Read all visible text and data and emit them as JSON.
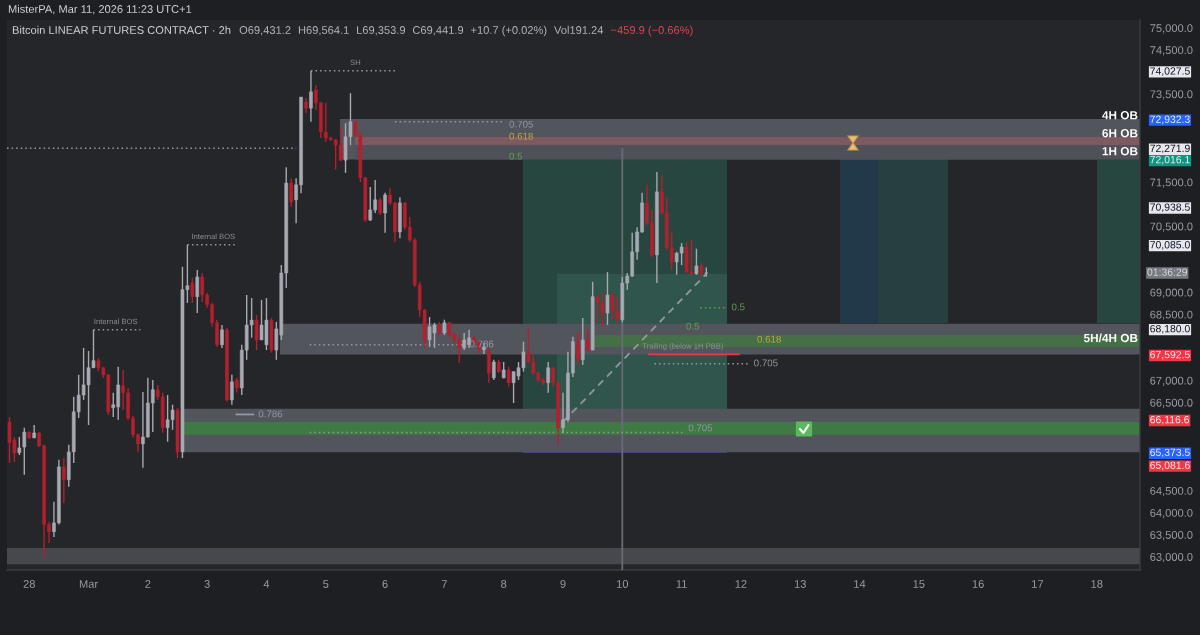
{
  "chart_data": {
    "type": "candlestick",
    "title": "MisterPA, Mar 11, 2026 11:23 UTC+1",
    "subtitle": "Bitcoin LINEAR FUTURES CONTRACT · 2h",
    "x": [
      "2026-02-27T16:00",
      "2026-02-27T18:00",
      "2026-02-27T20:00",
      "2026-02-27T22:00",
      "2026-02-28T00:00",
      "2026-02-28T02:00",
      "2026-02-28T04:00",
      "2026-02-28T06:00",
      "2026-02-28T08:00",
      "2026-02-28T10:00",
      "2026-02-28T12:00",
      "2026-02-28T14:00",
      "2026-02-28T16:00",
      "2026-02-28T18:00",
      "2026-02-28T20:00",
      "2026-02-28T22:00",
      "2026-03-01T00:00",
      "2026-03-01T02:00",
      "2026-03-01T04:00",
      "2026-03-01T06:00",
      "2026-03-01T08:00",
      "2026-03-01T10:00",
      "2026-03-01T12:00",
      "2026-03-01T14:00",
      "2026-03-01T16:00",
      "2026-03-01T18:00",
      "2026-03-01T20:00",
      "2026-03-01T22:00",
      "2026-03-02T00:00",
      "2026-03-02T02:00",
      "2026-03-02T04:00",
      "2026-03-02T06:00",
      "2026-03-02T08:00",
      "2026-03-02T10:00",
      "2026-03-02T12:00",
      "2026-03-02T14:00",
      "2026-03-02T16:00",
      "2026-03-02T18:00",
      "2026-03-02T20:00",
      "2026-03-02T22:00",
      "2026-03-03T00:00",
      "2026-03-03T02:00",
      "2026-03-03T04:00",
      "2026-03-03T06:00",
      "2026-03-03T08:00",
      "2026-03-03T10:00",
      "2026-03-03T12:00",
      "2026-03-03T14:00",
      "2026-03-03T16:00",
      "2026-03-03T18:00",
      "2026-03-03T20:00",
      "2026-03-03T22:00",
      "2026-03-04T00:00",
      "2026-03-04T02:00",
      "2026-03-04T04:00",
      "2026-03-04T06:00",
      "2026-03-04T08:00",
      "2026-03-04T10:00",
      "2026-03-04T12:00",
      "2026-03-04T14:00",
      "2026-03-04T16:00",
      "2026-03-04T18:00",
      "2026-03-04T20:00",
      "2026-03-04T22:00",
      "2026-03-05T00:00",
      "2026-03-05T02:00",
      "2026-03-05T04:00",
      "2026-03-05T06:00",
      "2026-03-05T08:00",
      "2026-03-05T10:00",
      "2026-03-05T12:00",
      "2026-03-05T14:00",
      "2026-03-05T16:00",
      "2026-03-05T18:00",
      "2026-03-05T20:00",
      "2026-03-05T22:00",
      "2026-03-06T00:00",
      "2026-03-06T02:00",
      "2026-03-06T04:00",
      "2026-03-06T06:00",
      "2026-03-06T08:00",
      "2026-03-06T10:00",
      "2026-03-06T12:00",
      "2026-03-06T14:00",
      "2026-03-06T16:00",
      "2026-03-06T18:00",
      "2026-03-06T20:00",
      "2026-03-06T22:00",
      "2026-03-07T00:00",
      "2026-03-07T02:00",
      "2026-03-07T04:00",
      "2026-03-07T06:00",
      "2026-03-07T08:00",
      "2026-03-07T10:00",
      "2026-03-07T12:00",
      "2026-03-07T14:00",
      "2026-03-07T16:00",
      "2026-03-07T18:00",
      "2026-03-07T20:00",
      "2026-03-07T22:00",
      "2026-03-08T00:00",
      "2026-03-08T02:00",
      "2026-03-08T04:00",
      "2026-03-08T06:00",
      "2026-03-08T08:00",
      "2026-03-08T10:00",
      "2026-03-08T12:00",
      "2026-03-08T14:00",
      "2026-03-08T16:00",
      "2026-03-08T18:00",
      "2026-03-08T20:00",
      "2026-03-08T22:00",
      "2026-03-09T00:00",
      "2026-03-09T02:00",
      "2026-03-09T04:00",
      "2026-03-09T06:00",
      "2026-03-09T08:00",
      "2026-03-09T10:00",
      "2026-03-09T12:00",
      "2026-03-09T14:00",
      "2026-03-09T16:00",
      "2026-03-09T18:00",
      "2026-03-09T20:00",
      "2026-03-09T22:00",
      "2026-03-10T00:00",
      "2026-03-10T02:00",
      "2026-03-10T04:00",
      "2026-03-10T06:00",
      "2026-03-10T08:00",
      "2026-03-10T10:00",
      "2026-03-10T12:00",
      "2026-03-10T14:00",
      "2026-03-10T16:00",
      "2026-03-10T18:00",
      "2026-03-10T20:00",
      "2026-03-10T22:00",
      "2026-03-11T00:00",
      "2026-03-11T02:00",
      "2026-03-11T04:00",
      "2026-03-11T06:00",
      "2026-03-11T08:00",
      "2026-03-11T10:00"
    ],
    "ohlc": [
      [
        66060,
        66170,
        65130,
        65590
      ],
      [
        65650,
        65720,
        65150,
        65360
      ],
      [
        65360,
        65720,
        65310,
        65470
      ],
      [
        65490,
        65930,
        64860,
        65830
      ],
      [
        65830,
        65840,
        65680,
        65700
      ],
      [
        65700,
        65990,
        65690,
        65810
      ],
      [
        65810,
        65830,
        65490,
        65520
      ],
      [
        65520,
        65540,
        62980,
        63730
      ],
      [
        63730,
        63790,
        63320,
        63570
      ],
      [
        63570,
        64250,
        63450,
        63770
      ],
      [
        63770,
        65200,
        63730,
        65040
      ],
      [
        65040,
        65240,
        64220,
        64750
      ],
      [
        64750,
        65540,
        64590,
        65380
      ],
      [
        65380,
        66630,
        65130,
        66290
      ],
      [
        66290,
        67130,
        66150,
        66670
      ],
      [
        66670,
        67740,
        66560,
        66900
      ],
      [
        66900,
        67670,
        65990,
        67290
      ],
      [
        67290,
        68150,
        67280,
        67450
      ],
      [
        67450,
        67510,
        67220,
        67290
      ],
      [
        67290,
        67310,
        67060,
        67130
      ],
      [
        67130,
        67140,
        66220,
        66290
      ],
      [
        66380,
        66720,
        66170,
        66450
      ],
      [
        66400,
        67310,
        66110,
        66900
      ],
      [
        66880,
        67240,
        66330,
        66720
      ],
      [
        66720,
        66830,
        66100,
        66150
      ],
      [
        66150,
        66200,
        65700,
        65770
      ],
      [
        65770,
        65800,
        65380,
        65560
      ],
      [
        65560,
        66740,
        65020,
        65720
      ],
      [
        65720,
        67060,
        65700,
        66490
      ],
      [
        66490,
        67010,
        65830,
        66790
      ],
      [
        66790,
        66900,
        66560,
        66630
      ],
      [
        66630,
        66720,
        65810,
        65930
      ],
      [
        65930,
        66670,
        65610,
        66110
      ],
      [
        66110,
        66450,
        65880,
        66330
      ],
      [
        66330,
        66380,
        65240,
        65380
      ],
      [
        65380,
        69580,
        65240,
        69060
      ],
      [
        69060,
        70080,
        68760,
        69150
      ],
      [
        69210,
        69330,
        68760,
        68900
      ],
      [
        68900,
        69510,
        68530,
        69350
      ],
      [
        69350,
        69440,
        68780,
        68940
      ],
      [
        68940,
        68990,
        68650,
        68720
      ],
      [
        68720,
        68760,
        68220,
        68310
      ],
      [
        68310,
        68370,
        67760,
        67810
      ],
      [
        67810,
        68260,
        67740,
        68150
      ],
      [
        68150,
        68190,
        66510,
        66560
      ],
      [
        66560,
        67130,
        66450,
        66970
      ],
      [
        67010,
        67060,
        66720,
        66830
      ],
      [
        66830,
        67810,
        66670,
        67690
      ],
      [
        67690,
        68940,
        67470,
        68260
      ],
      [
        68260,
        68870,
        67970,
        68370
      ],
      [
        68370,
        68490,
        67690,
        67920
      ],
      [
        67920,
        68830,
        67920,
        68260
      ],
      [
        67810,
        68870,
        67690,
        68370
      ],
      [
        68370,
        68420,
        67630,
        67690
      ],
      [
        67690,
        68330,
        67470,
        68170
      ],
      [
        68030,
        69620,
        67920,
        69440
      ],
      [
        69440,
        71840,
        69100,
        71480
      ],
      [
        71480,
        71590,
        70940,
        71050
      ],
      [
        71100,
        71590,
        70570,
        71440
      ],
      [
        71440,
        73430,
        71250,
        73430
      ],
      [
        73320,
        73410,
        73070,
        73180
      ],
      [
        73180,
        74027.5,
        72870,
        73550
      ],
      [
        73590,
        73700,
        73140,
        73300
      ],
      [
        73300,
        73320,
        72500,
        72640
      ],
      [
        72640,
        73300,
        72410,
        72500
      ],
      [
        72500,
        72530,
        72440,
        72460
      ],
      [
        72460,
        72480,
        71780,
        72340
      ],
      [
        72340,
        72750,
        71980,
        72000
      ],
      [
        72000,
        72840,
        71710,
        72530
      ],
      [
        72530,
        73520,
        72340,
        72870
      ],
      [
        72870,
        72900,
        72520,
        72570
      ],
      [
        72570,
        72640,
        71500,
        71600
      ],
      [
        71600,
        71620,
        70600,
        70640
      ],
      [
        70640,
        71390,
        70620,
        70870
      ],
      [
        70870,
        71550,
        70800,
        71100
      ],
      [
        71100,
        71140,
        70760,
        70800
      ],
      [
        70800,
        71260,
        70350,
        71210
      ],
      [
        71210,
        71370,
        70980,
        71030
      ],
      [
        71030,
        71050,
        70140,
        70370
      ],
      [
        70370,
        71160,
        70230,
        71030
      ],
      [
        71030,
        71050,
        70420,
        70480
      ],
      [
        70480,
        70710,
        70140,
        70190
      ],
      [
        70190,
        70230,
        69120,
        69170
      ],
      [
        69170,
        69240,
        68440,
        68600
      ],
      [
        68600,
        68620,
        67740,
        67920
      ],
      [
        67920,
        68440,
        67760,
        68220
      ],
      [
        68080,
        68310,
        67740,
        68260
      ],
      [
        68260,
        68330,
        68030,
        68080
      ],
      [
        68080,
        68380,
        68030,
        68310
      ],
      [
        68310,
        68330,
        67990,
        68030
      ],
      [
        68030,
        68100,
        67850,
        67920
      ],
      [
        67920,
        68030,
        67400,
        67740
      ],
      [
        67740,
        68080,
        67690,
        67920
      ],
      [
        67810,
        68150,
        67740,
        67970
      ],
      [
        67970,
        68010,
        67800,
        67850
      ],
      [
        67850,
        67900,
        67620,
        67700
      ],
      [
        67700,
        67850,
        67600,
        67760
      ],
      [
        67690,
        67740,
        66950,
        67170
      ],
      [
        67060,
        67470,
        67010,
        67420
      ],
      [
        67420,
        67470,
        67170,
        67200
      ],
      [
        67060,
        67420,
        67050,
        67240
      ],
      [
        67240,
        67310,
        66860,
        66950
      ],
      [
        66950,
        67200,
        66490,
        67200
      ],
      [
        67100,
        67420,
        67010,
        67290
      ],
      [
        67290,
        67880,
        67200,
        67650
      ],
      [
        67650,
        68190,
        67400,
        67420
      ],
      [
        67420,
        67580,
        67130,
        67170
      ],
      [
        67170,
        67200,
        66970,
        67010
      ],
      [
        67010,
        67060,
        66900,
        66950
      ],
      [
        66950,
        67420,
        66720,
        67290
      ],
      [
        67290,
        67310,
        66860,
        66950
      ],
      [
        66950,
        66970,
        65540,
        65930
      ],
      [
        65930,
        66720,
        65810,
        66110
      ],
      [
        66110,
        67650,
        66060,
        67170
      ],
      [
        67170,
        67990,
        67080,
        67880
      ],
      [
        67880,
        68100,
        67350,
        67470
      ],
      [
        67470,
        68420,
        67350,
        67920
      ],
      [
        67920,
        68150,
        67650,
        67690
      ],
      [
        67690,
        69240,
        67690,
        68900
      ],
      [
        68900,
        68940,
        68310,
        68760
      ],
      [
        68760,
        68990,
        68220,
        68530
      ],
      [
        68530,
        69460,
        68260,
        68940
      ],
      [
        68940,
        68990,
        68380,
        68600
      ],
      [
        68600,
        68900,
        68310,
        68380
      ],
      [
        68380,
        69350,
        68330,
        69210
      ],
      [
        69210,
        69440,
        69060,
        69370
      ],
      [
        69370,
        70350,
        69350,
        69920
      ],
      [
        69920,
        70480,
        69740,
        70370
      ],
      [
        70370,
        71260,
        70350,
        71030
      ],
      [
        71030,
        71440,
        70530,
        70570
      ],
      [
        70570,
        70870,
        69800,
        69850
      ],
      [
        69850,
        71730,
        69210,
        71280
      ],
      [
        71280,
        71660,
        70760,
        70800
      ],
      [
        70800,
        71160,
        69960,
        70010
      ],
      [
        70010,
        70350,
        69510,
        69690
      ],
      [
        69690,
        69920,
        69400,
        69890
      ],
      [
        69890,
        70120,
        69620,
        70030
      ],
      [
        70030,
        70140,
        69440,
        69460
      ],
      [
        69460,
        70190,
        69400,
        69420
      ],
      [
        69420,
        69990,
        69400,
        69600
      ],
      [
        69600,
        69670,
        69350,
        69430
      ],
      [
        69431.2,
        69564.1,
        69353.9,
        69441.9
      ]
    ],
    "colors": [
      "#b3202e",
      "#b3202e",
      "#a7aab2",
      "#a7aab2",
      "#b3202e",
      "#a7aab2",
      "#b3202e",
      "#b3202e",
      "#b3202e",
      "#a7aab2",
      "#a7aab2",
      "#b3202e",
      "#a7aab2",
      "#a7aab2",
      "#a7aab2",
      "#a7aab2",
      "#a7aab2",
      "#a7aab2",
      "#b3202e",
      "#b3202e",
      "#b3202e",
      "#a7aab2",
      "#a7aab2",
      "#b3202e",
      "#b3202e",
      "#b3202e",
      "#b3202e",
      "#a7aab2",
      "#a7aab2",
      "#a7aab2",
      "#b3202e",
      "#b3202e",
      "#a7aab2",
      "#a7aab2",
      "#b3202e",
      "#a7aab2",
      "#a7aab2",
      "#b3202e",
      "#a7aab2",
      "#b3202e",
      "#b3202e",
      "#b3202e",
      "#b3202e",
      "#a7aab2",
      "#b3202e",
      "#a7aab2",
      "#b3202e",
      "#a7aab2",
      "#a7aab2",
      "#a7aab2",
      "#b3202e",
      "#a7aab2",
      "#a7aab2",
      "#b3202e",
      "#a7aab2",
      "#a7aab2",
      "#a7aab2",
      "#b3202e",
      "#a7aab2",
      "#a7aab2",
      "#b3202e",
      "#a7aab2",
      "#b3202e",
      "#b3202e",
      "#b3202e",
      "#b3202e",
      "#b3202e",
      "#b3202e",
      "#a7aab2",
      "#a7aab2",
      "#b3202e",
      "#b3202e",
      "#b3202e",
      "#a7aab2",
      "#a7aab2",
      "#b3202e",
      "#a7aab2",
      "#b3202e",
      "#b3202e",
      "#a7aab2",
      "#b3202e",
      "#b3202e",
      "#b3202e",
      "#b3202e",
      "#b3202e",
      "#a7aab2",
      "#a7aab2",
      "#b3202e",
      "#a7aab2",
      "#b3202e",
      "#b3202e",
      "#b3202e",
      "#a7aab2",
      "#a7aab2",
      "#b3202e",
      "#b3202e",
      "#a7aab2",
      "#b3202e",
      "#a7aab2",
      "#b3202e",
      "#a7aab2",
      "#b3202e",
      "#a7aab2",
      "#a7aab2",
      "#a7aab2",
      "#b3202e",
      "#b3202e",
      "#b3202e",
      "#b3202e",
      "#a7aab2",
      "#b3202e",
      "#b3202e",
      "#a7aab2",
      "#a7aab2",
      "#a7aab2",
      "#b3202e",
      "#a7aab2",
      "#b3202e",
      "#a7aab2",
      "#b3202e",
      "#b3202e",
      "#a7aab2",
      "#b3202e",
      "#b3202e",
      "#a7aab2",
      "#a7aab2",
      "#a7aab2",
      "#a7aab2",
      "#a7aab2",
      "#b3202e",
      "#b3202e",
      "#a7aab2",
      "#b3202e",
      "#b3202e",
      "#b3202e",
      "#a7aab2",
      "#a7aab2",
      "#b3202e",
      "#b3202e",
      "#a7aab2",
      "#b3202e",
      "#a7aab2"
    ],
    "xlim": [
      "2026-02-27T15:00",
      "2026-03-18T17:30"
    ],
    "xticks": [
      {
        "value": "2026-02-28",
        "label": "28"
      },
      {
        "value": "2026-03-01",
        "label": "Mar"
      },
      {
        "value": "2026-03-02",
        "label": "2"
      },
      {
        "value": "2026-03-03",
        "label": "3"
      },
      {
        "value": "2026-03-04",
        "label": "4"
      },
      {
        "value": "2026-03-05",
        "label": "5"
      },
      {
        "value": "2026-03-06",
        "label": "6"
      },
      {
        "value": "2026-03-07",
        "label": "7"
      },
      {
        "value": "2026-03-08",
        "label": "8"
      },
      {
        "value": "2026-03-09",
        "label": "9"
      },
      {
        "value": "2026-03-10",
        "label": "10"
      },
      {
        "value": "2026-03-11",
        "label": "11"
      },
      {
        "value": "2026-03-12",
        "label": "12"
      },
      {
        "value": "2026-03-13",
        "label": "13"
      },
      {
        "value": "2026-03-14",
        "label": "14"
      },
      {
        "value": "2026-03-15",
        "label": "15"
      },
      {
        "value": "2026-03-16",
        "label": "16"
      },
      {
        "value": "2026-03-17",
        "label": "17"
      },
      {
        "value": "2026-03-18",
        "label": "18"
      }
    ],
    "ylim": [
      62700,
      75180
    ],
    "yticks": [
      {
        "value": 63000,
        "label": "63,000.0"
      },
      {
        "value": 63500,
        "label": "63,500.0"
      },
      {
        "value": 64000,
        "label": "64,000.0"
      },
      {
        "value": 64500,
        "label": "64,500.0"
      },
      {
        "value": 65081.6,
        "label": "65,081.6"
      },
      {
        "value": 65373.5,
        "label": "65,373.5"
      },
      {
        "value": 66116.6,
        "label": "66,116.6"
      },
      {
        "value": 66500,
        "label": "66,500.0"
      },
      {
        "value": 67000,
        "label": "67,000.0"
      },
      {
        "value": 67592.5,
        "label": "67,592.5"
      },
      {
        "value": 68180.0,
        "label": "68,180.0"
      },
      {
        "value": 68500,
        "label": "68,500.0"
      },
      {
        "value": 69000,
        "label": "69,000.0"
      },
      {
        "value": 70085.0,
        "label": "70,085.0"
      },
      {
        "value": 70500,
        "label": "70,500.0"
      },
      {
        "value": 70938.5,
        "label": "70,938.5"
      },
      {
        "value": 71500,
        "label": "71,500.0"
      },
      {
        "value": 72016.1,
        "label": "72,016.1"
      },
      {
        "value": 72271.9,
        "label": "72,271.9"
      },
      {
        "value": 72932.3,
        "label": "72,932.3"
      },
      {
        "value": 73500,
        "label": "73,500.0"
      },
      {
        "value": 74027.5,
        "label": "74,027.5"
      },
      {
        "value": 74500,
        "label": "74,500.0"
      },
      {
        "value": 75000,
        "label": "75,000.0"
      }
    ],
    "bands": [
      {
        "axis": "y",
        "from": 72016.1,
        "to": 72932.3,
        "label": "4H OB",
        "color": "#53555c"
      },
      {
        "axis": "y",
        "from": 72344,
        "to": 72525,
        "label": "6H OB",
        "color": "#7e5a60"
      },
      {
        "axis": "y",
        "from": 72016.1,
        "to": 72344,
        "label": "1H OB",
        "color": "#4e5157"
      },
      {
        "axis": "y",
        "from": 67592.5,
        "to": 68290,
        "label": "5H/4H OB",
        "color": "#53555c"
      },
      {
        "axis": "y",
        "from": 67760,
        "to": 68030,
        "color": "#456f46"
      },
      {
        "axis": "y",
        "from": 65373.5,
        "to": 66360,
        "color": "#53555c"
      },
      {
        "axis": "y",
        "from": 65770,
        "to": 66060,
        "color": "#3f7a45"
      },
      {
        "axis": "y",
        "from": 62830,
        "to": 63200,
        "color": "#46484e"
      }
    ],
    "series": [
      {
        "type": "line",
        "x": [
          "2026-03-10T00:00",
          "2026-03-10T00:00"
        ],
        "values": [
          62700,
          72271.9
        ],
        "color": "#686b73",
        "line_style": "solid"
      },
      {
        "type": "line",
        "x": [
          "2026-03-09T00:00",
          "2026-03-11T10:00"
        ],
        "values": [
          66060,
          69420
        ],
        "color": "#8f9aa0",
        "line_style": "dashed"
      },
      {
        "type": "line",
        "x": [
          "2026-03-04T18:00",
          "2026-03-06T05:00"
        ],
        "values": [
          74027.5,
          74027.5
        ],
        "color": "#9598a1",
        "line_style": "dotted"
      },
      {
        "type": "line",
        "x": [
          "2026-03-01T02:00",
          "2026-03-01T21:00"
        ],
        "values": [
          68150,
          68150
        ],
        "color": "#9598a1",
        "line_style": "dotted"
      },
      {
        "type": "line",
        "x": [
          "2026-03-02T16:00",
          "2026-03-03T12:00"
        ],
        "values": [
          70080,
          70080
        ],
        "color": "#9598a1",
        "line_style": "dotted"
      },
      {
        "type": "line",
        "x": [
          "2026-02-27T15:00",
          "2026-03-04T12:00"
        ],
        "values": [
          72271.9,
          72271.9
        ],
        "color": "#9598a1",
        "line_style": "dotted"
      },
      {
        "type": "line",
        "x": [
          "2026-03-10T10:30",
          "2026-03-11T23:30"
        ],
        "values": [
          67592.5,
          67592.5
        ],
        "color": "#f23645",
        "line_style": "solid"
      },
      {
        "type": "line",
        "name": "0.705",
        "x": [
          "2026-03-06T04:00",
          "2026-03-08T00:30"
        ],
        "values": [
          72870,
          72870
        ],
        "color": "#9598a1",
        "line_style": "dotted"
      },
      {
        "type": "line",
        "name": "0.786",
        "x": [
          "2026-03-04T17:30",
          "2026-03-07T08:30"
        ],
        "values": [
          67810,
          67810
        ],
        "color": "#9598a1",
        "line_style": "dotted"
      },
      {
        "type": "line",
        "name": "0.786",
        "x": [
          "2026-03-03T11:30",
          "2026-03-03T19:00"
        ],
        "values": [
          66230,
          66230
        ],
        "color": "#9598a1",
        "line_style": "solid"
      },
      {
        "type": "line",
        "name": "0.705",
        "x": [
          "2026-03-04T17:30",
          "2026-03-11T01:00"
        ],
        "values": [
          65820,
          65820
        ],
        "color": "#9598a1",
        "line_style": "dotted"
      },
      {
        "type": "line",
        "name": "0.5",
        "x": [
          "2026-03-11T07:30",
          "2026-03-11T18:30"
        ],
        "values": [
          68650,
          68650
        ],
        "color": "#5fa04e",
        "line_style": "dotted"
      },
      {
        "type": "line",
        "name": "0.705",
        "x": [
          "2026-03-10T13:00",
          "2026-03-12T03:30"
        ],
        "values": [
          67380,
          67380
        ],
        "color": "#9598a1",
        "line_style": "dotted"
      }
    ],
    "annotations": [
      "O69,431.2",
      "H69,564.1",
      "L69,353.9",
      "C69,441.9",
      "+10.7 (+0.02%)",
      "Vol191.24",
      "−459.9 (−0.66%)",
      "0.618",
      "0.5",
      "0.5",
      "0.618",
      "01:36:29",
      {
        "text": "SH",
        "x": "2026-03-05T12:00",
        "y": 74027.5
      },
      {
        "text": "Internal BOS",
        "x": "2026-03-01T11:00",
        "y": 68150
      },
      {
        "text": "Internal BOS",
        "x": "2026-03-03T02:30",
        "y": 70080
      },
      {
        "text": "Trailing (below 1H PBB)",
        "x": "2026-03-11T00:30",
        "y": 67592.5
      }
    ]
  }
}
